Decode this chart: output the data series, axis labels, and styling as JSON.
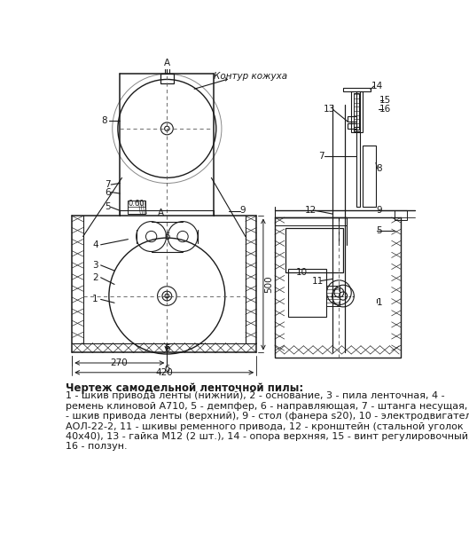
{
  "bg_color": "#ffffff",
  "line_color": "#1a1a1a",
  "fig_width": 5.29,
  "fig_height": 6.3,
  "dpi": 100,
  "title": "Чертеж самодельной ленточной пилы:",
  "legend_lines": [
    "1 - шкив привода ленты (нижний), 2 - основание, 3 - пила ленточная, 4 -",
    "ремень клиновой А710, 5 - демпфер, 6 - направляющая, 7 - штанга несущая, 8",
    "- шкив привода ленты (верхний), 9 - стол (фанера s20), 10 - электродвигатель",
    "АОЛ-22-2, 11 - шкивы ременного привода, 12 - кронштейн (стальной уголок",
    "40х40), 13 - гайка М12 (2 шт.), 14 - опора верхняя, 15 - винт регулировочный,",
    "16 - ползун."
  ],
  "label_kontur": "Контур кожуха",
  "dim_500": "500",
  "dim_270": "270",
  "dim_420": "420"
}
